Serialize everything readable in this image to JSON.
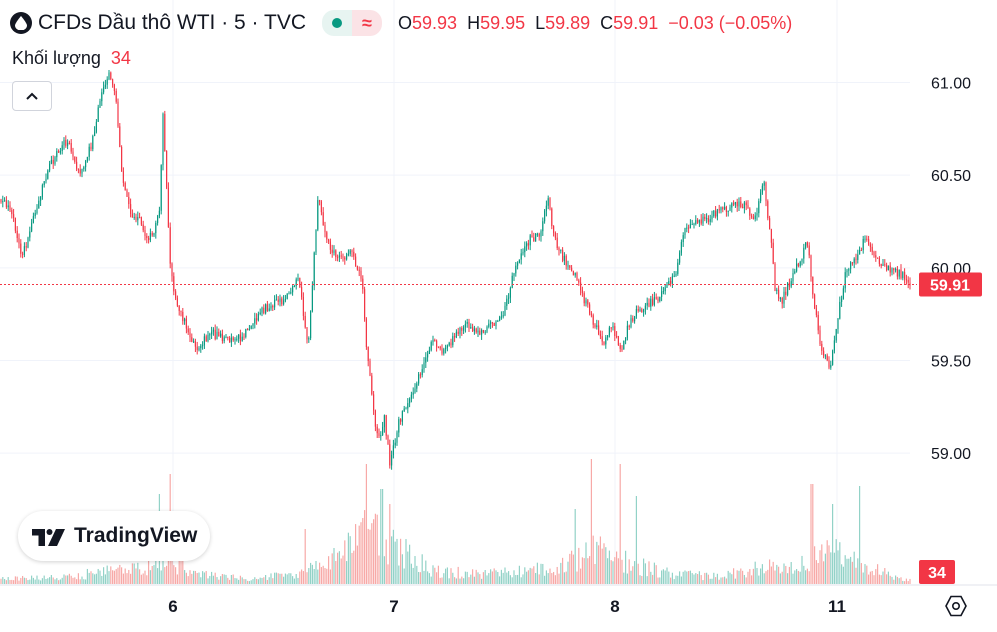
{
  "header": {
    "symbol_title": "CFDs Dầu thô WTI · 5 · TVC",
    "status_approx": "≈",
    "ohlc": {
      "o_label": "O",
      "o_value": "59.93",
      "h_label": "H",
      "h_value": "59.95",
      "l_label": "L",
      "l_value": "59.89",
      "c_label": "C",
      "c_value": "59.91",
      "change": "−0.03 (−0.05%)"
    }
  },
  "volume_legend": {
    "label": "Khối lượng",
    "value": "34"
  },
  "branding": {
    "logo_text": "TradingView"
  },
  "icons": {
    "symbol": "oil-drop-icon",
    "market_status": "market-open-dot-icon",
    "collapse": "chevron-up-icon",
    "settings": "settings-hexagon-icon"
  },
  "colors": {
    "up": "#089981",
    "down": "#f23645",
    "up_volume": "#92d2c7",
    "down_volume": "#f7a9a7",
    "grid": "#f0f3fa",
    "text": "#131722"
  },
  "chart_data": {
    "type": "candlestick",
    "interval": "5",
    "y_axis": {
      "ticks": [
        "61.00",
        "60.50",
        "60.00",
        "59.50",
        "59.00"
      ],
      "range": [
        58.65,
        61.1
      ]
    },
    "x_axis": {
      "ticks": [
        "6",
        "7",
        "8",
        "11"
      ]
    },
    "last_price": 59.91,
    "last_price_label": "59.91",
    "last_volume": 34,
    "last_volume_label": "34",
    "price_path": [
      [
        0,
        60.37
      ],
      [
        10,
        60.33
      ],
      [
        22,
        60.05
      ],
      [
        35,
        60.3
      ],
      [
        50,
        60.55
      ],
      [
        68,
        60.7
      ],
      [
        80,
        60.5
      ],
      [
        92,
        60.68
      ],
      [
        102,
        60.95
      ],
      [
        110,
        61.05
      ],
      [
        116,
        60.9
      ],
      [
        122,
        60.5
      ],
      [
        130,
        60.3
      ],
      [
        140,
        60.25
      ],
      [
        148,
        60.15
      ],
      [
        155,
        60.2
      ],
      [
        160,
        60.35
      ],
      [
        163,
        60.85
      ],
      [
        166,
        60.5
      ],
      [
        170,
        60.05
      ],
      [
        176,
        59.8
      ],
      [
        186,
        59.7
      ],
      [
        196,
        59.56
      ],
      [
        210,
        59.65
      ],
      [
        230,
        59.6
      ],
      [
        240,
        59.62
      ],
      [
        255,
        59.73
      ],
      [
        270,
        59.8
      ],
      [
        285,
        59.83
      ],
      [
        298,
        59.95
      ],
      [
        303,
        59.78
      ],
      [
        308,
        59.55
      ],
      [
        313,
        59.95
      ],
      [
        318,
        60.4
      ],
      [
        322,
        60.28
      ],
      [
        330,
        60.1
      ],
      [
        340,
        60.05
      ],
      [
        352,
        60.08
      ],
      [
        362,
        59.95
      ],
      [
        366,
        59.6
      ],
      [
        372,
        59.3
      ],
      [
        378,
        59.05
      ],
      [
        384,
        59.2
      ],
      [
        390,
        58.95
      ],
      [
        398,
        59.15
      ],
      [
        410,
        59.3
      ],
      [
        425,
        59.5
      ],
      [
        432,
        59.6
      ],
      [
        440,
        59.55
      ],
      [
        450,
        59.6
      ],
      [
        465,
        59.7
      ],
      [
        478,
        59.65
      ],
      [
        490,
        59.68
      ],
      [
        505,
        59.78
      ],
      [
        515,
        60.0
      ],
      [
        530,
        60.15
      ],
      [
        542,
        60.2
      ],
      [
        548,
        60.4
      ],
      [
        552,
        60.2
      ],
      [
        560,
        60.08
      ],
      [
        575,
        59.95
      ],
      [
        590,
        59.75
      ],
      [
        603,
        59.6
      ],
      [
        612,
        59.68
      ],
      [
        622,
        59.55
      ],
      [
        630,
        59.72
      ],
      [
        645,
        59.8
      ],
      [
        660,
        59.85
      ],
      [
        675,
        59.95
      ],
      [
        684,
        60.2
      ],
      [
        700,
        60.25
      ],
      [
        720,
        60.3
      ],
      [
        740,
        60.35
      ],
      [
        755,
        60.28
      ],
      [
        764,
        60.45
      ],
      [
        770,
        60.2
      ],
      [
        775,
        59.9
      ],
      [
        782,
        59.82
      ],
      [
        792,
        59.95
      ],
      [
        800,
        60.05
      ],
      [
        808,
        60.15
      ],
      [
        813,
        59.85
      ],
      [
        820,
        59.6
      ],
      [
        830,
        59.45
      ],
      [
        838,
        59.75
      ],
      [
        845,
        59.95
      ],
      [
        855,
        60.05
      ],
      [
        865,
        60.15
      ],
      [
        876,
        60.05
      ],
      [
        890,
        60.0
      ],
      [
        900,
        59.97
      ],
      [
        910,
        59.91
      ]
    ],
    "volume_profile": [
      [
        0,
        5
      ],
      [
        60,
        7
      ],
      [
        110,
        14
      ],
      [
        150,
        18
      ],
      [
        170,
        24
      ],
      [
        200,
        10
      ],
      [
        260,
        6
      ],
      [
        300,
        12
      ],
      [
        340,
        30
      ],
      [
        370,
        58
      ],
      [
        395,
        40
      ],
      [
        430,
        16
      ],
      [
        480,
        10
      ],
      [
        520,
        14
      ],
      [
        560,
        18
      ],
      [
        595,
        40
      ],
      [
        630,
        22
      ],
      [
        670,
        12
      ],
      [
        720,
        8
      ],
      [
        760,
        18
      ],
      [
        800,
        20
      ],
      [
        830,
        36
      ],
      [
        860,
        20
      ],
      [
        910,
        4
      ]
    ],
    "volume_spikes": [
      [
        160,
        90
      ],
      [
        170,
        110
      ],
      [
        180,
        70
      ],
      [
        305,
        55
      ],
      [
        367,
        120
      ],
      [
        382,
        95
      ],
      [
        390,
        80
      ],
      [
        575,
        75
      ],
      [
        592,
        125
      ],
      [
        620,
        120
      ],
      [
        636,
        88
      ],
      [
        812,
        100
      ],
      [
        833,
        80
      ],
      [
        860,
        98
      ]
    ]
  }
}
